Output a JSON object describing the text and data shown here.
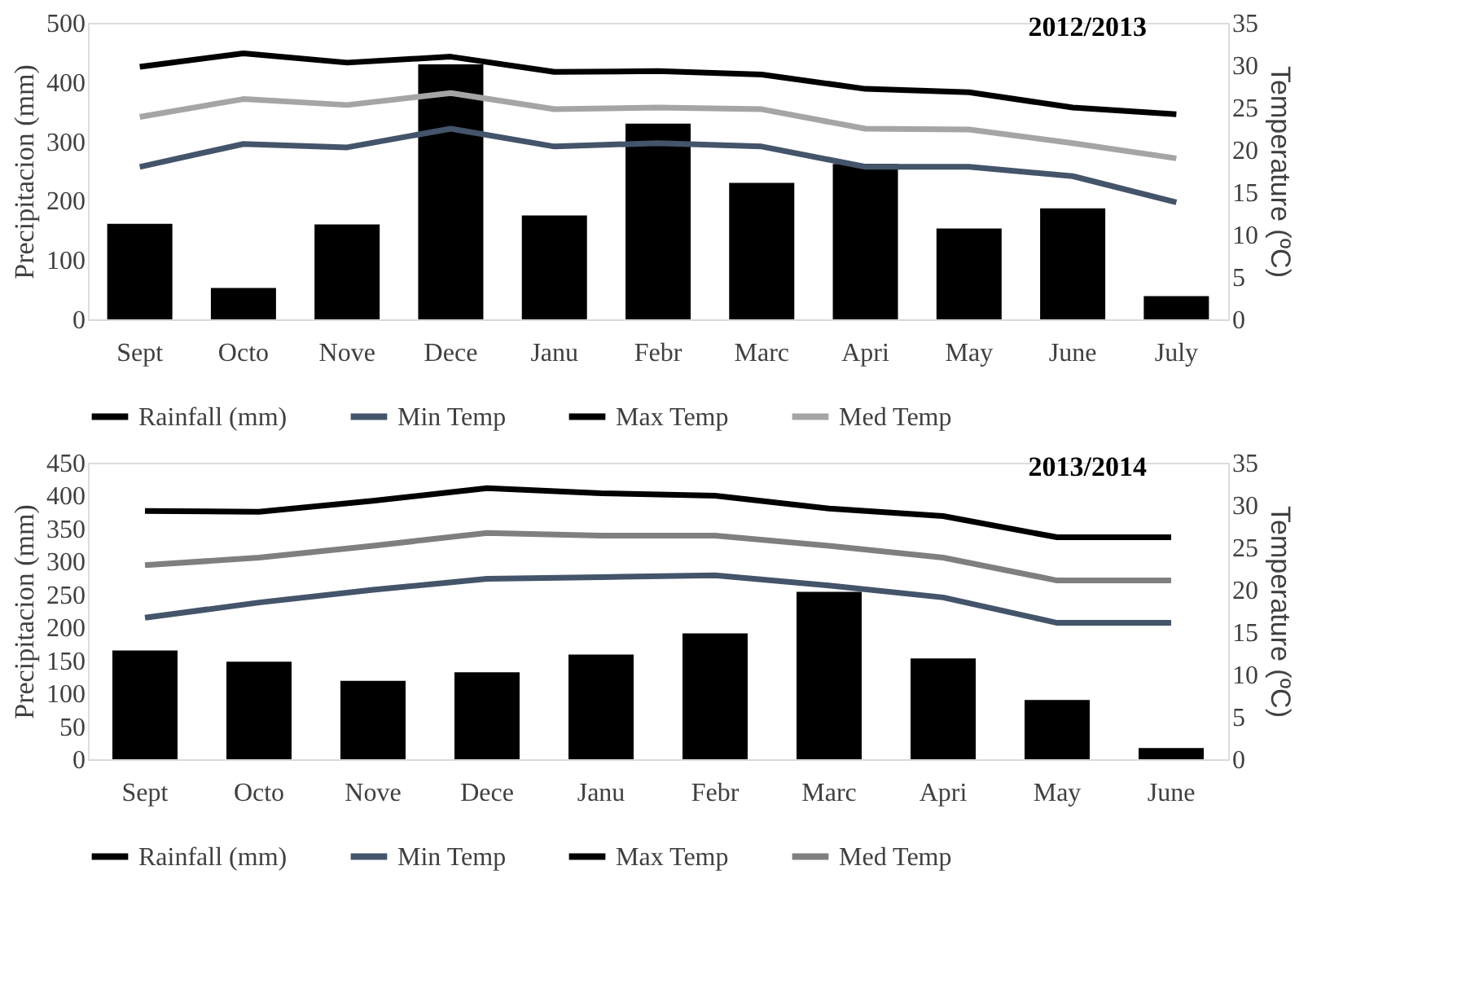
{
  "chart_data": [
    {
      "type": "bar",
      "title": "2012/2013",
      "ylabel": "Precipitacion (mm)",
      "y2label": "Temperature (ºC)",
      "categories": [
        "Sept",
        "Octo",
        "Nove",
        "Dece",
        "Janu",
        "Febr",
        "Marc",
        "Apri",
        "May",
        "June",
        "July"
      ],
      "series": [
        {
          "name": "Rainfall (mm)",
          "axis": "y",
          "color": "#000000",
          "values": [
            161,
            53,
            160,
            430,
            175,
            330,
            230,
            262,
            153,
            187,
            39
          ]
        },
        {
          "name": "Min Temp",
          "type": "line",
          "axis": "y2",
          "color": "#44546a",
          "values": [
            18.0,
            20.7,
            20.3,
            22.5,
            20.4,
            20.8,
            20.4,
            18.0,
            18.0,
            16.9,
            13.8
          ]
        },
        {
          "name": "Max Temp",
          "type": "line",
          "axis": "y2",
          "color": "#000000",
          "values": [
            29.8,
            31.4,
            30.3,
            31.0,
            29.2,
            29.3,
            28.9,
            27.2,
            26.8,
            25.0,
            24.2
          ]
        },
        {
          "name": "Med Temp",
          "type": "line",
          "axis": "y2",
          "color": "#a5a5a5",
          "values": [
            23.9,
            26.0,
            25.3,
            26.7,
            24.8,
            25.0,
            24.8,
            22.5,
            22.4,
            20.8,
            19.0
          ]
        }
      ],
      "ylim": [
        0,
        500
      ],
      "yticks": [
        0,
        100,
        200,
        300,
        400,
        500
      ],
      "y2lim": [
        0,
        35
      ],
      "y2ticks": [
        0,
        5,
        10,
        15,
        20,
        25,
        30,
        35
      ],
      "grid": false,
      "legend": "bottom"
    },
    {
      "type": "bar",
      "title": "2013/2014",
      "ylabel": "Precipitacion (mm)",
      "y2label": "Temperature  (ºC)",
      "categories": [
        "Sept",
        "Octo",
        "Nove",
        "Dece",
        "Janu",
        "Febr",
        "Marc",
        "Apri",
        "May",
        "June"
      ],
      "series": [
        {
          "name": "Rainfall (mm)",
          "axis": "y",
          "color": "#000000",
          "values": [
            165,
            148,
            119,
            132,
            159,
            191,
            254,
            153,
            90,
            17
          ]
        },
        {
          "name": "Min Temp",
          "type": "line",
          "axis": "y2",
          "color": "#44546a",
          "values": [
            16.7,
            18.5,
            20.0,
            21.3,
            21.5,
            21.7,
            20.5,
            19.1,
            16.1,
            16.1
          ]
        },
        {
          "name": "Max Temp",
          "type": "line",
          "axis": "y2",
          "color": "#000000",
          "values": [
            29.3,
            29.2,
            30.5,
            32.0,
            31.4,
            31.1,
            29.6,
            28.7,
            26.2,
            26.2
          ]
        },
        {
          "name": "Med Temp",
          "type": "line",
          "axis": "y2",
          "color": "#7f7f7f",
          "values": [
            22.9,
            23.8,
            25.2,
            26.7,
            26.4,
            26.4,
            25.2,
            23.8,
            21.1,
            21.1
          ]
        }
      ],
      "ylim": [
        0,
        450
      ],
      "yticks": [
        0,
        50,
        100,
        150,
        200,
        250,
        300,
        350,
        400,
        450
      ],
      "y2lim": [
        0,
        35
      ],
      "y2ticks": [
        0,
        5,
        10,
        15,
        20,
        25,
        30,
        35
      ],
      "grid": false,
      "legend": "bottom"
    }
  ]
}
